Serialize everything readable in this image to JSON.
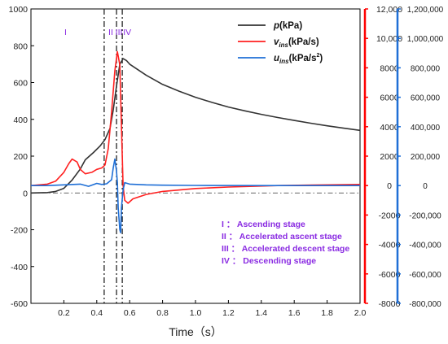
{
  "chart_data": {
    "type": "line",
    "xlabel": "Time（s）",
    "xlim": [
      0,
      2.0
    ],
    "xticks": [
      "0.2",
      "0.4",
      "0.6",
      "0.8",
      "1.0",
      "1.2",
      "1.4",
      "1.6",
      "1.8",
      "2.0"
    ],
    "y_left": {
      "lim": [
        -600,
        1000
      ],
      "ticks": [
        "-600",
        "-400",
        "-200",
        "0",
        "200",
        "400",
        "600",
        "800",
        "1000"
      ],
      "color": "#000000"
    },
    "y_right1": {
      "lim": [
        -8000,
        12000
      ],
      "ticks": [
        "-8000",
        "-6000",
        "-4000",
        "-2000",
        "0",
        "2000",
        "4000",
        "6000",
        "8000",
        "10,000",
        "12,000"
      ],
      "color": "#ff0000"
    },
    "y_right2": {
      "lim": [
        -800000,
        1200000
      ],
      "ticks": [
        "-800,000",
        "-600,000",
        "-400,000",
        "-200,000",
        "0",
        "200,000",
        "400,000",
        "600,000",
        "800,000",
        "1,000,000",
        "1,200,000"
      ],
      "color": "#1f6fd6"
    },
    "grid": false,
    "legend_position": "top-right",
    "series": [
      {
        "name": "p(kPa)",
        "legend_main": "p",
        "legend_unit": "(kPa)",
        "legend_sup": "",
        "axis": "left",
        "color": "#333333",
        "points": [
          [
            0.0,
            0
          ],
          [
            0.1,
            2
          ],
          [
            0.15,
            8
          ],
          [
            0.2,
            25
          ],
          [
            0.25,
            70
          ],
          [
            0.3,
            130
          ],
          [
            0.33,
            180
          ],
          [
            0.38,
            220
          ],
          [
            0.42,
            255
          ],
          [
            0.45,
            290
          ],
          [
            0.48,
            350
          ],
          [
            0.5,
            450
          ],
          [
            0.52,
            580
          ],
          [
            0.54,
            700
          ],
          [
            0.56,
            730
          ],
          [
            0.58,
            720
          ],
          [
            0.6,
            700
          ],
          [
            0.7,
            640
          ],
          [
            0.8,
            590
          ],
          [
            0.9,
            553
          ],
          [
            1.0,
            520
          ],
          [
            1.1,
            492
          ],
          [
            1.2,
            467
          ],
          [
            1.3,
            446
          ],
          [
            1.4,
            427
          ],
          [
            1.5,
            410
          ],
          [
            1.6,
            394
          ],
          [
            1.7,
            379
          ],
          [
            1.8,
            365
          ],
          [
            1.9,
            352
          ],
          [
            2.0,
            340
          ]
        ]
      },
      {
        "name": "vins(kPa/s)",
        "legend_main": "v",
        "legend_sub": "ins",
        "legend_unit": "(kPa/s)",
        "legend_sup": "",
        "axis": "right1",
        "color": "#ff2020",
        "points": [
          [
            0.0,
            0
          ],
          [
            0.1,
            100
          ],
          [
            0.15,
            300
          ],
          [
            0.2,
            900
          ],
          [
            0.23,
            1500
          ],
          [
            0.25,
            1800
          ],
          [
            0.28,
            1600
          ],
          [
            0.3,
            1100
          ],
          [
            0.33,
            800
          ],
          [
            0.37,
            900
          ],
          [
            0.4,
            1100
          ],
          [
            0.43,
            1200
          ],
          [
            0.45,
            1400
          ],
          [
            0.47,
            2500
          ],
          [
            0.49,
            5000
          ],
          [
            0.51,
            7800
          ],
          [
            0.525,
            9100
          ],
          [
            0.54,
            8200
          ],
          [
            0.55,
            4000
          ],
          [
            0.56,
            0
          ],
          [
            0.57,
            -1000
          ],
          [
            0.59,
            -1200
          ],
          [
            0.62,
            -900
          ],
          [
            0.7,
            -600
          ],
          [
            0.8,
            -400
          ],
          [
            1.0,
            -200
          ],
          [
            1.2,
            -100
          ],
          [
            1.5,
            0
          ],
          [
            1.8,
            50
          ],
          [
            2.0,
            80
          ]
        ]
      },
      {
        "name": "uins(kPa/s2)",
        "legend_main": "u",
        "legend_sub": "ins",
        "legend_unit": "(kPa/s",
        "legend_sup": "2",
        "axis": "right2",
        "color": "#1f6fd6",
        "points": [
          [
            0.0,
            0
          ],
          [
            0.1,
            0
          ],
          [
            0.2,
            5000
          ],
          [
            0.3,
            10000
          ],
          [
            0.35,
            -5000
          ],
          [
            0.4,
            15000
          ],
          [
            0.43,
            8000
          ],
          [
            0.46,
            12000
          ],
          [
            0.49,
            40000
          ],
          [
            0.5,
            120000
          ],
          [
            0.51,
            180000
          ],
          [
            0.52,
            100000
          ],
          [
            0.525,
            20000
          ],
          [
            0.53,
            -150000
          ],
          [
            0.54,
            -300000
          ],
          [
            0.545,
            -320000
          ],
          [
            0.55,
            -150000
          ],
          [
            0.56,
            -30000
          ],
          [
            0.57,
            20000
          ],
          [
            0.6,
            10000
          ],
          [
            0.7,
            5000
          ],
          [
            0.8,
            3000
          ],
          [
            1.0,
            1000
          ],
          [
            1.5,
            0
          ],
          [
            2.0,
            0
          ]
        ]
      }
    ],
    "stage_lines_x": [
      0.445,
      0.52,
      0.555
    ],
    "stage_markers": [
      {
        "label": "I",
        "x": 0.21
      },
      {
        "label": "II",
        "x": 0.485
      },
      {
        "label": "III",
        "x": 0.535
      },
      {
        "label": "IV",
        "x": 0.585
      }
    ],
    "stage_legend": [
      {
        "num": "I",
        "sep": "：",
        "text": "Ascending stage"
      },
      {
        "num": "II",
        "sep": "：",
        "text": "Accelerated ascent stage"
      },
      {
        "num": "III",
        "sep": "：",
        "text": "Accelerated descent stage"
      },
      {
        "num": "IV",
        "sep": "：",
        "text": "Descending stage"
      }
    ]
  }
}
